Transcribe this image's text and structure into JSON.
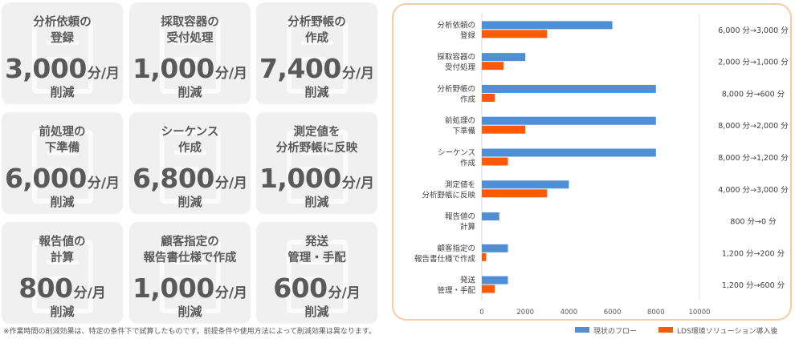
{
  "tiles": [
    {
      "title": "分析依頼の\n登録",
      "value": "3,000",
      "unit": "分/月",
      "reduction": "削減"
    },
    {
      "title": "採取容器の\n受付処理",
      "value": "1,000",
      "unit": "分/月",
      "reduction": "削減"
    },
    {
      "title": "分析野帳の\n作成",
      "value": "7,400",
      "unit": "分/月",
      "reduction": "削減"
    },
    {
      "title": "前処理の\n下準備",
      "value": "6,000",
      "unit": "分/月",
      "reduction": "削減"
    },
    {
      "title": "シーケンス\n作成",
      "value": "6,800",
      "unit": "分/月",
      "reduction": "削減"
    },
    {
      "title": "測定値を\n分析野帳に反映",
      "value": "1,000",
      "unit": "分/月",
      "reduction": "削減"
    },
    {
      "title": "報告値の\n計算",
      "value": "800",
      "unit": "分/月",
      "reduction": "削減"
    },
    {
      "title": "顧客指定の\n報告書仕様で作成",
      "value": "1,000",
      "unit": "分/月",
      "reduction": "削減"
    },
    {
      "title": "発送\n管理・手配",
      "value": "600",
      "unit": "分/月",
      "reduction": "削減"
    }
  ],
  "footnote": "※作業時間の削減効果は、特定の条件下で試算したものです。前提条件や使用方法によって削減効果は異なります。",
  "colors": {
    "current": "#4e8fd6",
    "after": "#ff5a0a",
    "grid": "#d9d9d9",
    "border": "#f6cba4",
    "tile_bg": "#f0f0f0"
  },
  "chart_data": {
    "type": "bar",
    "orientation": "horizontal",
    "categories": [
      "分析依頼の\n登録",
      "採取容器の\n受付処理",
      "分析野帳の\n作成",
      "前処理の\n下準備",
      "シーケンス\n作成",
      "測定値を\n分析野帳に反映",
      "報告値の\n計算",
      "顧客指定の\n報告書仕様で作成",
      "発送\n管理・手配"
    ],
    "series": [
      {
        "name": "現状のフロー",
        "color": "#4e8fd6",
        "values": [
          6000,
          2000,
          8000,
          8000,
          8000,
          4000,
          800,
          1200,
          1200
        ]
      },
      {
        "name": "LDS環境ソリューション導入後",
        "color": "#ff5a0a",
        "values": [
          3000,
          1000,
          600,
          2000,
          1200,
          3000,
          0,
          200,
          600
        ]
      }
    ],
    "xlim": [
      0,
      10000
    ],
    "xticks": [
      "0",
      "2000",
      "4000",
      "6000",
      "8000",
      "10000"
    ],
    "annotations": [
      "6,000 分→3,000 分",
      "2,000 分→1,000 分",
      "8,000 分→600 分",
      "8,000 分→2,000 分",
      "8,000 分→1,200 分",
      "4,000 分→3,000 分",
      "800 分→0 分",
      "1,200 分→200 分",
      "1,200 分→600 分"
    ],
    "legend_position": "bottom",
    "grid": false
  }
}
